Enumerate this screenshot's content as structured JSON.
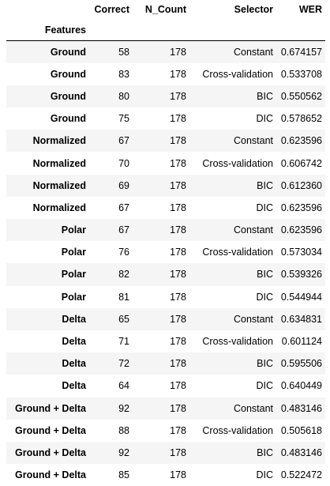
{
  "table": {
    "columns": [
      "Correct",
      "N_Count",
      "Selector",
      "WER"
    ],
    "index_name": "Features",
    "rows": [
      {
        "features": "Ground",
        "correct": "58",
        "n_count": "178",
        "selector": "Constant",
        "wer": "0.674157"
      },
      {
        "features": "Ground",
        "correct": "83",
        "n_count": "178",
        "selector": "Cross-validation",
        "wer": "0.533708"
      },
      {
        "features": "Ground",
        "correct": "80",
        "n_count": "178",
        "selector": "BIC",
        "wer": "0.550562"
      },
      {
        "features": "Ground",
        "correct": "75",
        "n_count": "178",
        "selector": "DIC",
        "wer": "0.578652"
      },
      {
        "features": "Normalized",
        "correct": "67",
        "n_count": "178",
        "selector": "Constant",
        "wer": "0.623596"
      },
      {
        "features": "Normalized",
        "correct": "70",
        "n_count": "178",
        "selector": "Cross-validation",
        "wer": "0.606742"
      },
      {
        "features": "Normalized",
        "correct": "69",
        "n_count": "178",
        "selector": "BIC",
        "wer": "0.612360"
      },
      {
        "features": "Normalized",
        "correct": "67",
        "n_count": "178",
        "selector": "DIC",
        "wer": "0.623596"
      },
      {
        "features": "Polar",
        "correct": "67",
        "n_count": "178",
        "selector": "Constant",
        "wer": "0.623596"
      },
      {
        "features": "Polar",
        "correct": "76",
        "n_count": "178",
        "selector": "Cross-validation",
        "wer": "0.573034"
      },
      {
        "features": "Polar",
        "correct": "82",
        "n_count": "178",
        "selector": "BIC",
        "wer": "0.539326"
      },
      {
        "features": "Polar",
        "correct": "81",
        "n_count": "178",
        "selector": "DIC",
        "wer": "0.544944"
      },
      {
        "features": "Delta",
        "correct": "65",
        "n_count": "178",
        "selector": "Constant",
        "wer": "0.634831"
      },
      {
        "features": "Delta",
        "correct": "71",
        "n_count": "178",
        "selector": "Cross-validation",
        "wer": "0.601124"
      },
      {
        "features": "Delta",
        "correct": "72",
        "n_count": "178",
        "selector": "BIC",
        "wer": "0.595506"
      },
      {
        "features": "Delta",
        "correct": "64",
        "n_count": "178",
        "selector": "DIC",
        "wer": "0.640449"
      },
      {
        "features": "Ground + Delta",
        "correct": "92",
        "n_count": "178",
        "selector": "Constant",
        "wer": "0.483146"
      },
      {
        "features": "Ground + Delta",
        "correct": "88",
        "n_count": "178",
        "selector": "Cross-validation",
        "wer": "0.505618"
      },
      {
        "features": "Ground + Delta",
        "correct": "92",
        "n_count": "178",
        "selector": "BIC",
        "wer": "0.483146"
      },
      {
        "features": "Ground + Delta",
        "correct": "85",
        "n_count": "178",
        "selector": "DIC",
        "wer": "0.522472"
      }
    ]
  },
  "colors": {
    "stripe": "#f5f5f5",
    "rule": "#000000",
    "text": "#000000"
  }
}
